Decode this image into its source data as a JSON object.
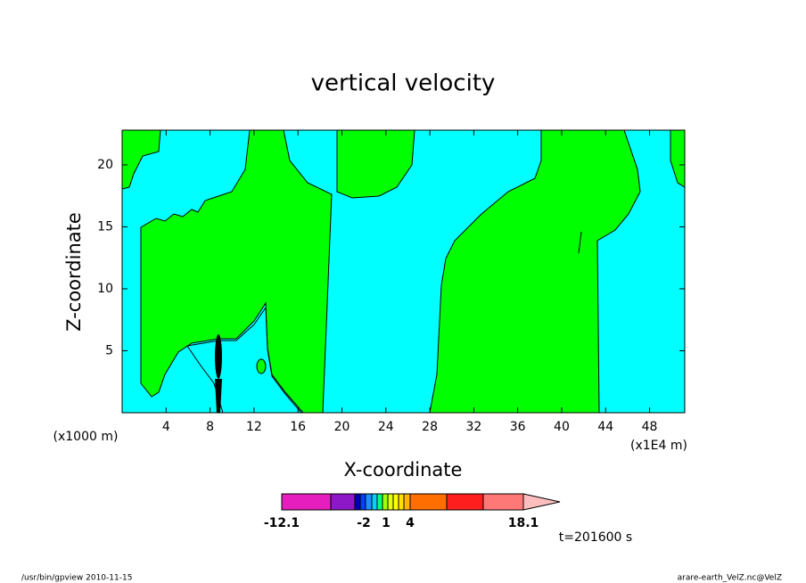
{
  "chart_data": {
    "type": "contour",
    "title": "vertical velocity",
    "xlabel": "X-coordinate",
    "ylabel": "Z-coordinate",
    "x_unit_left": "(x1000 m)",
    "x_unit_right": "(x1E4 m)",
    "xlim": [
      0,
      51.2
    ],
    "ylim": [
      0,
      22.8
    ],
    "xticks": [
      4,
      8,
      12,
      16,
      20,
      24,
      28,
      32,
      36,
      40,
      44,
      48
    ],
    "yticks": [
      5,
      10,
      15,
      20
    ],
    "colorbar": {
      "colors": [
        "#e61ebe",
        "#8c18c8",
        "#0000b4",
        "#0040ff",
        "#1e90ff",
        "#00d0ff",
        "#00ff80",
        "#a0ff00",
        "#e6ff00",
        "#ffff00",
        "#ffe000",
        "#ffb400",
        "#ff6e00",
        "#ff1e1e",
        "#ff7878",
        "#ffbebe"
      ],
      "ticks": [
        -12.1,
        -2,
        1,
        4,
        18.1
      ]
    },
    "annotation": "t=201600 s",
    "footer_left": "/usr/bin/gpview  2010-11-15",
    "footer_right": "arare-earth_VelZ.nc@VelZ"
  }
}
